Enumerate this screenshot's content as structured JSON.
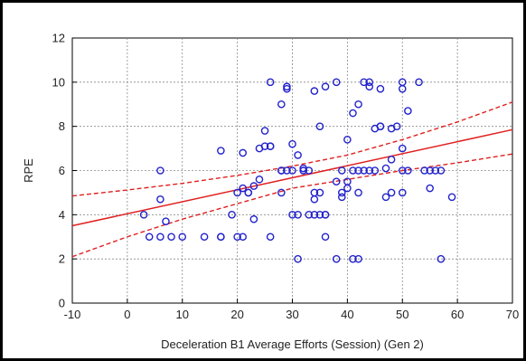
{
  "chart_data": {
    "type": "scatter",
    "xlabel": "Deceleration B1 Average Efforts (Session) (Gen 2)",
    "ylabel": "RPE",
    "xlim": [
      -10,
      70
    ],
    "ylim": [
      0,
      12
    ],
    "x_ticks": [
      -10,
      0,
      10,
      20,
      30,
      40,
      50,
      60,
      70
    ],
    "y_ticks": [
      0,
      2,
      4,
      6,
      8,
      10,
      12
    ],
    "grid": true,
    "colors": {
      "points": "#2222cc",
      "fit": "#e02020",
      "ci": "#e02020"
    },
    "series": [
      {
        "marker": "circle-open",
        "points": [
          [
            3,
            4
          ],
          [
            4,
            3
          ],
          [
            6,
            3
          ],
          [
            6,
            6
          ],
          [
            6,
            4.7
          ],
          [
            7,
            3.7
          ],
          [
            8,
            3
          ],
          [
            10,
            3
          ],
          [
            14,
            3
          ],
          [
            17,
            3
          ],
          [
            17,
            3
          ],
          [
            17,
            6.9
          ],
          [
            19,
            4
          ],
          [
            20,
            5
          ],
          [
            20,
            3
          ],
          [
            21,
            3
          ],
          [
            21,
            5.2
          ],
          [
            21,
            6.8
          ],
          [
            22,
            5
          ],
          [
            22,
            5
          ],
          [
            23,
            5.3
          ],
          [
            23,
            3.8
          ],
          [
            24,
            5.6
          ],
          [
            24,
            7
          ],
          [
            25,
            7.1
          ],
          [
            25,
            7.8
          ],
          [
            26,
            7.1
          ],
          [
            26,
            7.1
          ],
          [
            26,
            10
          ],
          [
            26,
            3
          ],
          [
            28,
            6
          ],
          [
            28,
            6
          ],
          [
            28,
            5
          ],
          [
            28,
            9
          ],
          [
            29,
            9.7
          ],
          [
            29,
            9.8
          ],
          [
            29,
            6
          ],
          [
            30,
            7.2
          ],
          [
            30,
            6
          ],
          [
            30,
            4
          ],
          [
            31,
            6.7
          ],
          [
            31,
            2
          ],
          [
            31,
            4
          ],
          [
            32,
            6
          ],
          [
            32,
            6.1
          ],
          [
            32,
            6
          ],
          [
            33,
            4
          ],
          [
            33,
            6
          ],
          [
            34,
            4
          ],
          [
            34,
            4.7
          ],
          [
            34,
            9.6
          ],
          [
            34,
            5
          ],
          [
            35,
            5
          ],
          [
            35,
            4
          ],
          [
            35,
            8
          ],
          [
            36,
            4
          ],
          [
            36,
            9.8
          ],
          [
            36,
            3
          ],
          [
            36,
            4
          ],
          [
            38,
            10
          ],
          [
            38,
            2
          ],
          [
            38,
            5.5
          ],
          [
            39,
            5
          ],
          [
            39,
            4.8
          ],
          [
            39,
            6
          ],
          [
            40,
            5.2
          ],
          [
            40,
            7.4
          ],
          [
            40,
            5.5
          ],
          [
            41,
            6
          ],
          [
            41,
            8.6
          ],
          [
            41,
            2
          ],
          [
            42,
            9
          ],
          [
            42,
            6
          ],
          [
            42,
            2
          ],
          [
            42,
            5
          ],
          [
            43,
            10
          ],
          [
            43,
            6
          ],
          [
            44,
            9.8
          ],
          [
            44,
            6
          ],
          [
            44,
            10
          ],
          [
            45,
            6
          ],
          [
            45,
            7.9
          ],
          [
            46,
            8
          ],
          [
            46,
            8
          ],
          [
            46,
            9.7
          ],
          [
            47,
            4.8
          ],
          [
            47,
            6.1
          ],
          [
            48,
            6.5
          ],
          [
            48,
            5
          ],
          [
            48,
            7.9
          ],
          [
            49,
            8
          ],
          [
            50,
            10
          ],
          [
            50,
            9.7
          ],
          [
            50,
            6
          ],
          [
            50,
            5
          ],
          [
            50,
            7
          ],
          [
            51,
            6
          ],
          [
            51,
            8.7
          ],
          [
            53,
            10
          ],
          [
            54,
            6
          ],
          [
            55,
            5.2
          ],
          [
            55,
            6
          ],
          [
            56,
            6
          ],
          [
            57,
            6
          ],
          [
            57,
            2
          ],
          [
            59,
            4.8
          ]
        ]
      }
    ],
    "fit_line": {
      "x": [
        -10,
        70
      ],
      "y": [
        3.5,
        7.85
      ]
    },
    "ci_upper": {
      "x": [
        -10,
        0,
        10,
        20,
        30,
        40,
        50,
        60,
        70
      ],
      "y": [
        4.85,
        5.12,
        5.42,
        5.78,
        6.2,
        6.7,
        7.4,
        8.2,
        9.1
      ]
    },
    "ci_lower": {
      "x": [
        -10,
        0,
        10,
        20,
        30,
        40,
        50,
        60,
        70
      ],
      "y": [
        2.1,
        3.0,
        3.8,
        4.5,
        5.2,
        5.6,
        6.0,
        6.35,
        6.75
      ]
    }
  }
}
